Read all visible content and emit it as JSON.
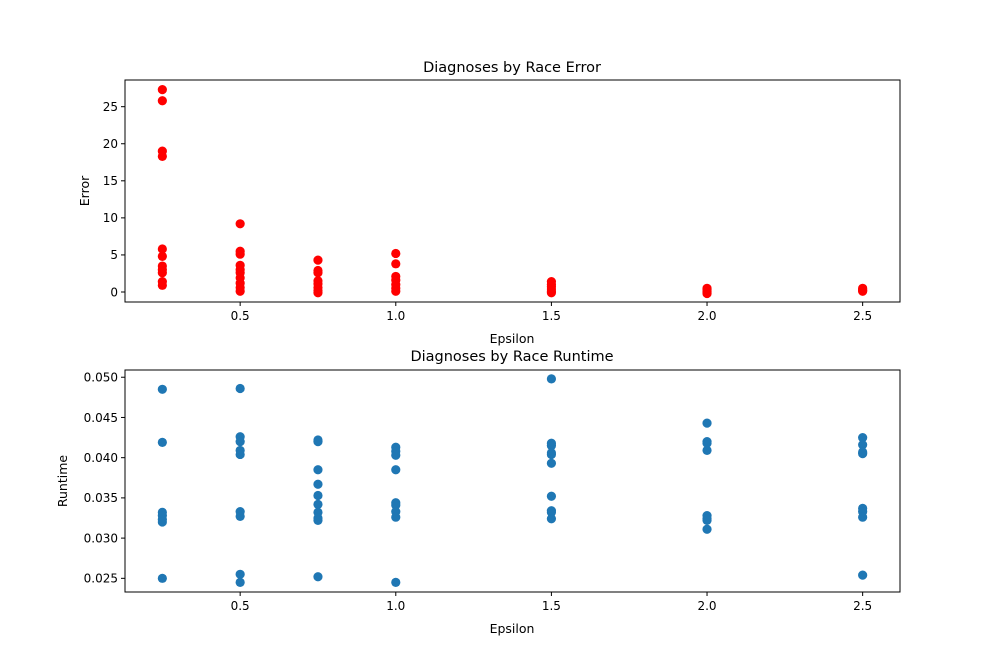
{
  "chart_data": [
    {
      "type": "scatter",
      "title": "Diagnoses by Race Error",
      "xlabel": "Epsilon",
      "ylabel": "Error",
      "xlim": [
        0.13,
        2.62
      ],
      "ylim": [
        -1.35,
        28.6
      ],
      "xticks": [
        0.5,
        1.0,
        1.5,
        2.0,
        2.5
      ],
      "xtick_labels": [
        "0.5",
        "1.0",
        "1.5",
        "2.0",
        "2.5"
      ],
      "yticks": [
        0,
        5,
        10,
        15,
        20,
        25
      ],
      "ytick_labels": [
        "0",
        "5",
        "10",
        "15",
        "20",
        "25"
      ],
      "color": "#ff0000",
      "grid": false,
      "points": [
        [
          0.25,
          27.3
        ],
        [
          0.25,
          25.8
        ],
        [
          0.25,
          19.0
        ],
        [
          0.25,
          18.3
        ],
        [
          0.25,
          5.8
        ],
        [
          0.25,
          4.8
        ],
        [
          0.25,
          3.5
        ],
        [
          0.25,
          3.0
        ],
        [
          0.25,
          2.6
        ],
        [
          0.25,
          1.4
        ],
        [
          0.25,
          0.9
        ],
        [
          0.5,
          9.2
        ],
        [
          0.5,
          5.5
        ],
        [
          0.5,
          5.1
        ],
        [
          0.5,
          3.6
        ],
        [
          0.5,
          3.0
        ],
        [
          0.5,
          2.6
        ],
        [
          0.5,
          1.9
        ],
        [
          0.5,
          1.2
        ],
        [
          0.5,
          0.6
        ],
        [
          0.5,
          0.1
        ],
        [
          0.75,
          4.3
        ],
        [
          0.75,
          2.9
        ],
        [
          0.75,
          2.6
        ],
        [
          0.75,
          1.5
        ],
        [
          0.75,
          1.1
        ],
        [
          0.75,
          0.6
        ],
        [
          0.75,
          0.2
        ],
        [
          0.75,
          -0.1
        ],
        [
          1.0,
          5.2
        ],
        [
          1.0,
          3.8
        ],
        [
          1.0,
          2.1
        ],
        [
          1.0,
          1.6
        ],
        [
          1.0,
          1.0
        ],
        [
          1.0,
          0.5
        ],
        [
          1.0,
          0.1
        ],
        [
          1.5,
          1.4
        ],
        [
          1.5,
          1.0
        ],
        [
          1.5,
          0.7
        ],
        [
          1.5,
          0.4
        ],
        [
          1.5,
          0.1
        ],
        [
          1.5,
          -0.1
        ],
        [
          2.0,
          0.5
        ],
        [
          2.0,
          0.3
        ],
        [
          2.0,
          0.1
        ],
        [
          2.0,
          -0.1
        ],
        [
          2.0,
          -0.2
        ],
        [
          2.5,
          0.5
        ],
        [
          2.5,
          0.3
        ],
        [
          2.5,
          0.2
        ],
        [
          2.5,
          0.1
        ]
      ]
    },
    {
      "type": "scatter",
      "title": "Diagnoses by Race Runtime",
      "xlabel": "Epsilon",
      "ylabel": "Runtime",
      "xlim": [
        0.13,
        2.62
      ],
      "ylim": [
        0.0233,
        0.0509
      ],
      "xticks": [
        0.5,
        1.0,
        1.5,
        2.0,
        2.5
      ],
      "xtick_labels": [
        "0.5",
        "1.0",
        "1.5",
        "2.0",
        "2.5"
      ],
      "yticks": [
        0.025,
        0.03,
        0.035,
        0.04,
        0.045,
        0.05
      ],
      "ytick_labels": [
        "0.025",
        "0.030",
        "0.035",
        "0.040",
        "0.045",
        "0.050"
      ],
      "color": "#1f77b4",
      "grid": false,
      "points": [
        [
          0.25,
          0.0485
        ],
        [
          0.25,
          0.0419
        ],
        [
          0.25,
          0.0332
        ],
        [
          0.25,
          0.0328
        ],
        [
          0.25,
          0.0323
        ],
        [
          0.25,
          0.032
        ],
        [
          0.25,
          0.025
        ],
        [
          0.5,
          0.0486
        ],
        [
          0.5,
          0.0426
        ],
        [
          0.5,
          0.042
        ],
        [
          0.5,
          0.0409
        ],
        [
          0.5,
          0.0404
        ],
        [
          0.5,
          0.0333
        ],
        [
          0.5,
          0.0327
        ],
        [
          0.5,
          0.0255
        ],
        [
          0.5,
          0.0245
        ],
        [
          0.75,
          0.0422
        ],
        [
          0.75,
          0.042
        ],
        [
          0.75,
          0.0385
        ],
        [
          0.75,
          0.0367
        ],
        [
          0.75,
          0.0353
        ],
        [
          0.75,
          0.0342
        ],
        [
          0.75,
          0.0332
        ],
        [
          0.75,
          0.0325
        ],
        [
          0.75,
          0.0322
        ],
        [
          0.75,
          0.0252
        ],
        [
          1.0,
          0.0413
        ],
        [
          1.0,
          0.0408
        ],
        [
          1.0,
          0.0403
        ],
        [
          1.0,
          0.0385
        ],
        [
          1.0,
          0.0344
        ],
        [
          1.0,
          0.0341
        ],
        [
          1.0,
          0.0333
        ],
        [
          1.0,
          0.0326
        ],
        [
          1.0,
          0.0245
        ],
        [
          1.5,
          0.0498
        ],
        [
          1.5,
          0.0418
        ],
        [
          1.5,
          0.0415
        ],
        [
          1.5,
          0.0406
        ],
        [
          1.5,
          0.0404
        ],
        [
          1.5,
          0.0393
        ],
        [
          1.5,
          0.0352
        ],
        [
          1.5,
          0.0334
        ],
        [
          1.5,
          0.0332
        ],
        [
          1.5,
          0.0324
        ],
        [
          2.0,
          0.0443
        ],
        [
          2.0,
          0.042
        ],
        [
          2.0,
          0.0418
        ],
        [
          2.0,
          0.0409
        ],
        [
          2.0,
          0.0328
        ],
        [
          2.0,
          0.0324
        ],
        [
          2.0,
          0.0322
        ],
        [
          2.0,
          0.0311
        ],
        [
          2.5,
          0.0425
        ],
        [
          2.5,
          0.0416
        ],
        [
          2.5,
          0.0407
        ],
        [
          2.5,
          0.0405
        ],
        [
          2.5,
          0.0337
        ],
        [
          2.5,
          0.0333
        ],
        [
          2.5,
          0.0326
        ],
        [
          2.5,
          0.0254
        ]
      ]
    }
  ]
}
